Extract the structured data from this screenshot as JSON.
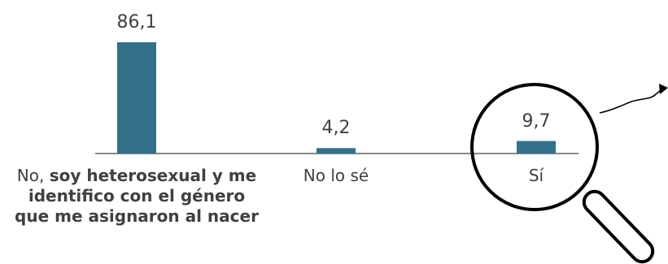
{
  "chart_data": {
    "type": "bar",
    "categories": [
      "No, soy heterosexual y me identifico con el género que me asignaron al nacer",
      "No lo sé",
      "Sí"
    ],
    "category_labels": [
      {
        "plain": "No, ",
        "bold": "soy heterosexual y me identifico con el género que me asignaron al nacer"
      },
      {
        "plain": "No lo sé",
        "bold": ""
      },
      {
        "plain": "Sí",
        "bold": ""
      }
    ],
    "values": [
      86.1,
      4.2,
      9.7
    ],
    "value_labels": [
      "86,1",
      "4,2",
      "9,7"
    ],
    "title": "",
    "xlabel": "",
    "ylabel": "",
    "ylim": [
      0,
      86.1
    ],
    "grid": false,
    "legend": "none",
    "highlighted_category": "Sí",
    "highlight_decoration": "magnifying-glass with arrow"
  },
  "colors": {
    "bar": "#33718b",
    "axis": "#404040",
    "text": "#404040",
    "lens": "#000000"
  }
}
